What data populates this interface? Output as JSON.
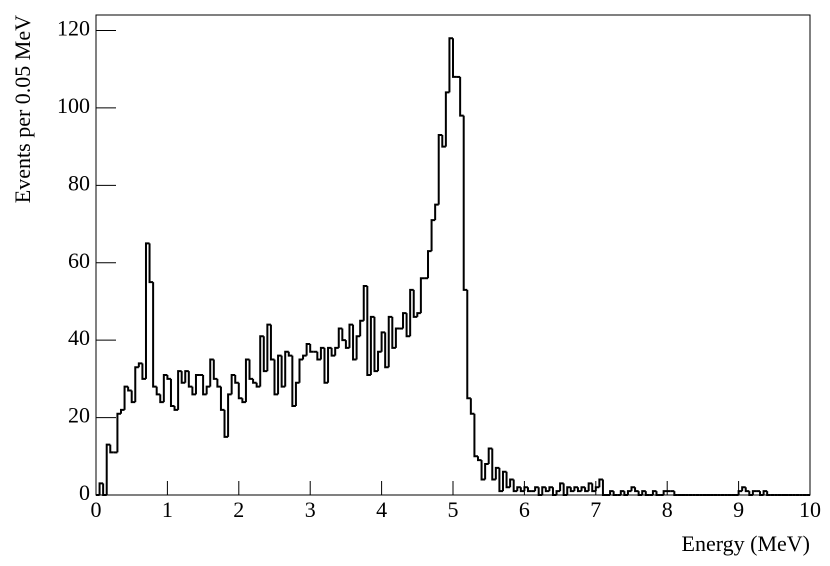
{
  "chart_data": {
    "type": "histogram",
    "x_label": "Energy (MeV)",
    "y_label": "Events per 0.05 MeV",
    "color": "#000000",
    "xlim": [
      0,
      10
    ],
    "ylim": [
      0,
      124
    ],
    "xticks": [
      0,
      1,
      2,
      3,
      4,
      5,
      6,
      7,
      8,
      9,
      10
    ],
    "yticks": [
      0,
      20,
      40,
      60,
      80,
      100,
      120
    ],
    "bins": [
      0,
      0.05,
      0.1,
      0.15,
      0.2,
      0.25,
      0.3,
      0.35,
      0.4,
      0.45,
      0.5,
      0.55,
      0.6,
      0.65,
      0.7,
      0.75,
      0.8,
      0.85,
      0.9,
      0.95,
      1,
      1.05,
      1.1,
      1.15,
      1.2,
      1.25,
      1.3,
      1.35,
      1.4,
      1.45,
      1.5,
      1.55,
      1.6,
      1.65,
      1.7,
      1.75,
      1.8,
      1.85,
      1.9,
      1.95,
      2,
      2.05,
      2.1,
      2.15,
      2.2,
      2.25,
      2.3,
      2.35,
      2.4,
      2.45,
      2.5,
      2.55,
      2.6,
      2.65,
      2.7,
      2.75,
      2.8,
      2.85,
      2.9,
      2.95,
      3,
      3.05,
      3.1,
      3.15,
      3.2,
      3.25,
      3.3,
      3.35,
      3.4,
      3.45,
      3.5,
      3.55,
      3.6,
      3.65,
      3.7,
      3.75,
      3.8,
      3.85,
      3.9,
      3.95,
      4,
      4.05,
      4.1,
      4.15,
      4.2,
      4.25,
      4.3,
      4.35,
      4.4,
      4.45,
      4.5,
      4.55,
      4.6,
      4.65,
      4.7,
      4.75,
      4.8,
      4.85,
      4.9,
      4.95,
      5,
      5.05,
      5.1,
      5.15,
      5.2,
      5.25,
      5.3,
      5.35,
      5.4,
      5.45,
      5.5,
      5.55,
      5.6,
      5.65,
      5.7,
      5.75,
      5.8,
      5.85,
      5.9,
      5.95,
      6,
      6.05,
      6.1,
      6.15,
      6.2,
      6.25,
      6.3,
      6.35,
      6.4,
      6.45,
      6.5,
      6.55,
      6.6,
      6.65,
      6.7,
      6.75,
      6.8,
      6.85,
      6.9,
      6.95,
      7,
      7.05,
      7.1,
      7.15,
      7.2,
      7.25,
      7.3,
      7.35,
      7.4,
      7.45,
      7.5,
      7.55,
      7.6,
      7.65,
      7.7,
      7.75,
      7.8,
      7.85,
      7.9,
      7.95,
      8,
      8.05,
      8.1,
      8.15,
      8.2,
      8.25,
      8.3,
      8.35,
      8.4,
      8.45,
      8.5,
      8.55,
      8.6,
      8.65,
      8.7,
      8.75,
      8.8,
      8.85,
      8.9,
      8.95,
      9,
      9.05,
      9.1,
      9.15,
      9.2,
      9.25,
      9.3,
      9.35,
      9.4,
      9.45,
      9.5,
      9.55,
      9.6,
      9.65,
      9.7,
      9.75,
      9.8,
      9.85,
      9.9,
      9.95,
      10
    ],
    "values": [
      0,
      3,
      0,
      13,
      11,
      11,
      21,
      22,
      28,
      27,
      24,
      33,
      34,
      30,
      65,
      55,
      28,
      26,
      24,
      31,
      30,
      23,
      22,
      32,
      29,
      32,
      28,
      26,
      31,
      31,
      26,
      28,
      35,
      30,
      28,
      22,
      15,
      26,
      31,
      29,
      25,
      24,
      35,
      30,
      29,
      28,
      41,
      32,
      44,
      35,
      26,
      36,
      28,
      37,
      36,
      23,
      29,
      35,
      36,
      39,
      37,
      37,
      35,
      38,
      29,
      38,
      36,
      38,
      43,
      40,
      38,
      44,
      35,
      41,
      45,
      54,
      31,
      46,
      32,
      37,
      42,
      33,
      46,
      38,
      43,
      43,
      47,
      41,
      53,
      46,
      47,
      56,
      56,
      63,
      71,
      75,
      93,
      90,
      104,
      118,
      108,
      108,
      98,
      53,
      25,
      21,
      10,
      9,
      4,
      8,
      12,
      4,
      7,
      1,
      6,
      2,
      4,
      1,
      2,
      1,
      2,
      1,
      1,
      2,
      0,
      2,
      1,
      2,
      0,
      1,
      3,
      0,
      2,
      1,
      2,
      1,
      2,
      1,
      3,
      1,
      2,
      4,
      0,
      0,
      1,
      0,
      0,
      1,
      0,
      1,
      2,
      1,
      0,
      1,
      0,
      0,
      1,
      0,
      0,
      1,
      1,
      1,
      0,
      0,
      0,
      0,
      0,
      0,
      0,
      0,
      0,
      0,
      0,
      0,
      0,
      0,
      0,
      0,
      0,
      0,
      1,
      2,
      1,
      0,
      1,
      1,
      0,
      1,
      0,
      0,
      0,
      0,
      0,
      0,
      0,
      0,
      0,
      0,
      0,
      0
    ]
  }
}
